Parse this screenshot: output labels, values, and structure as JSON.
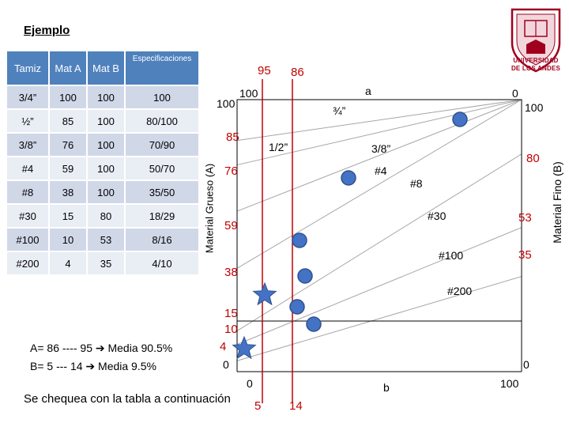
{
  "title": "Ejemplo",
  "table": {
    "headers": {
      "tamiz": "Tamiz",
      "mat_a": "Mat A",
      "mat_b": "Mat B",
      "spec": "Especificaciones"
    },
    "rows": [
      {
        "tamiz": "3/4”",
        "a": "100",
        "b": "100",
        "spec": "100"
      },
      {
        "tamiz": "½”",
        "a": "85",
        "b": "100",
        "spec": "80/100"
      },
      {
        "tamiz": "3/8”",
        "a": "76",
        "b": "100",
        "spec": "70/90"
      },
      {
        "tamiz": "#4",
        "a": "59",
        "b": "100",
        "spec": "50/70"
      },
      {
        "tamiz": "#8",
        "a": "38",
        "b": "100",
        "spec": "35/50"
      },
      {
        "tamiz": "#30",
        "a": "15",
        "b": "80",
        "spec": "18/29"
      },
      {
        "tamiz": "#100",
        "a": "10",
        "b": "53",
        "spec": "8/16"
      },
      {
        "tamiz": "#200",
        "a": "4",
        "b": "35",
        "spec": "4/10"
      }
    ]
  },
  "notes": {
    "line1": "A= 86 ---- 95 ➔ Media 90.5%",
    "line2": "B= 5 --- 14 ➔ Media 9.5%"
  },
  "footer": "Se chequea con la tabla a continuación",
  "logo": {
    "line1": "UNIVERSIDAD",
    "line2": "DE LOS ANDES"
  },
  "diagram": {
    "axis_left_title": "Material Grueso (A)",
    "axis_right_title": "Material Fino (B)",
    "left_values": [
      "100",
      "85",
      "76",
      "59",
      "38",
      "15",
      "10",
      "4",
      "0"
    ],
    "right_values": [
      "100",
      "80",
      "53",
      "35",
      "0"
    ],
    "top_labels": {
      "v95": "95",
      "v86": "86",
      "v100_top": "100",
      "a": "a",
      "zero": "0"
    },
    "bottom_labels": {
      "zero": "0",
      "b": "b",
      "hundred": "100",
      "v5": "5",
      "v14": "14"
    },
    "sieve_labels": [
      "¾”",
      "1/2”",
      "3/8”",
      "#4",
      "#8",
      "#30",
      "#100",
      "#200"
    ],
    "colors": {
      "accent": "#c00000",
      "dot": "#4472c4",
      "line": "#a6a6a6",
      "header": "#4f81bd"
    }
  }
}
